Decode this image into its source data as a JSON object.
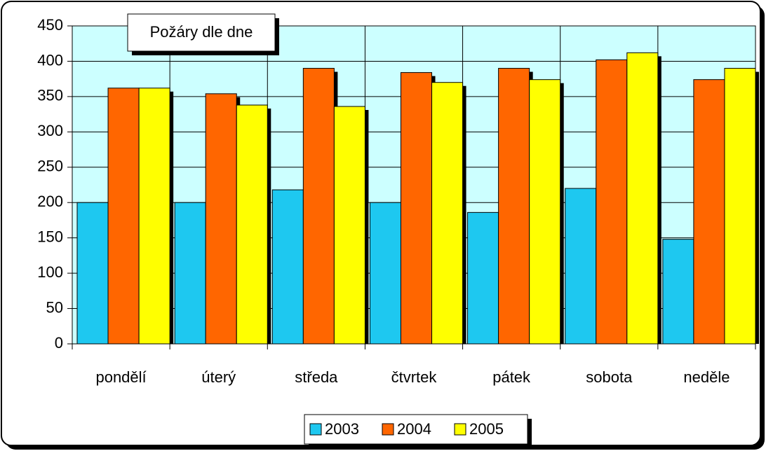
{
  "chart_data": {
    "type": "bar",
    "title": "Požáry dle dne",
    "categories": [
      "pondělí",
      "úterý",
      "středa",
      "čtvrtek",
      "pátek",
      "sobota",
      "neděle"
    ],
    "series": [
      {
        "name": "2003",
        "color": "#1ec8f0",
        "values": [
          200,
          200,
          218,
          200,
          186,
          220,
          148
        ]
      },
      {
        "name": "2004",
        "color": "#ff6600",
        "values": [
          362,
          354,
          390,
          384,
          390,
          402,
          374
        ]
      },
      {
        "name": "2005",
        "color": "#ffff00",
        "values": [
          362,
          338,
          336,
          370,
          374,
          412,
          390
        ]
      }
    ],
    "ylim": [
      0,
      450
    ],
    "yticks": [
      0,
      50,
      100,
      150,
      200,
      250,
      300,
      350,
      400,
      450
    ],
    "grid": true,
    "legend": "bottom"
  }
}
